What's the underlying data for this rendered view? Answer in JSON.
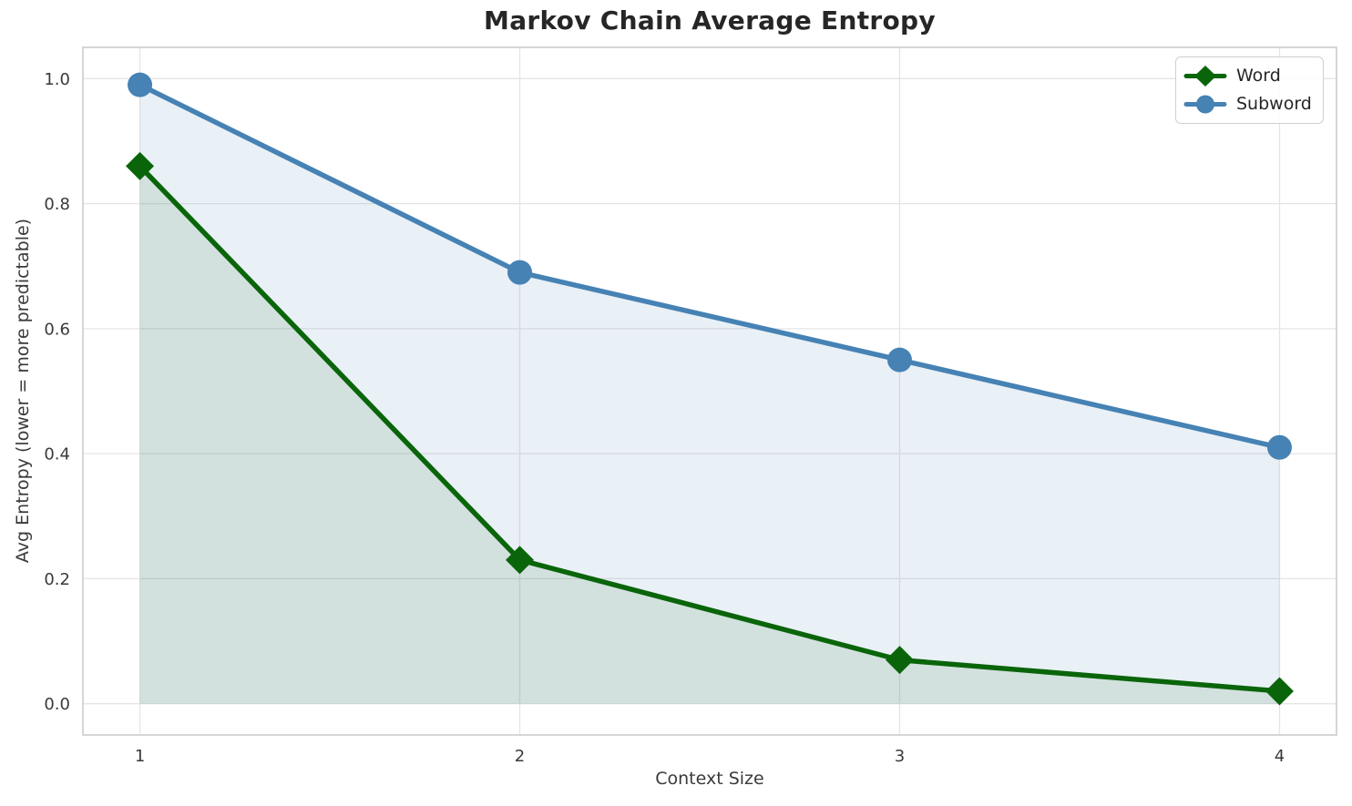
{
  "chart_data": {
    "type": "line",
    "title": "Markov Chain Average Entropy",
    "xlabel": "Context Size",
    "ylabel": "Avg Entropy (lower = more predictable)",
    "x": [
      1,
      2,
      3,
      4
    ],
    "xticklabels": [
      "1",
      "2",
      "3",
      "4"
    ],
    "yticks": [
      0.0,
      0.2,
      0.4,
      0.6,
      0.8,
      1.0
    ],
    "yticklabels": [
      "0.0",
      "0.2",
      "0.4",
      "0.6",
      "0.8",
      "1.0"
    ],
    "xlim": [
      0.85,
      4.15
    ],
    "ylim": [
      -0.05,
      1.05
    ],
    "grid": true,
    "legend_position": "upper right",
    "series": [
      {
        "name": "Word",
        "marker": "diamond",
        "color": "#0a650a",
        "fill_opacity": 0.1,
        "values": [
          0.86,
          0.23,
          0.07,
          0.02
        ]
      },
      {
        "name": "Subword",
        "marker": "circle",
        "color": "#4682b4",
        "fill_opacity": 0.12,
        "values": [
          0.99,
          0.69,
          0.55,
          0.41
        ]
      }
    ],
    "style": {
      "grid_color": "#e5e5e5",
      "spine_color": "#cccccc",
      "tick_color": "#3a3a3a",
      "title_color": "#262626"
    }
  }
}
